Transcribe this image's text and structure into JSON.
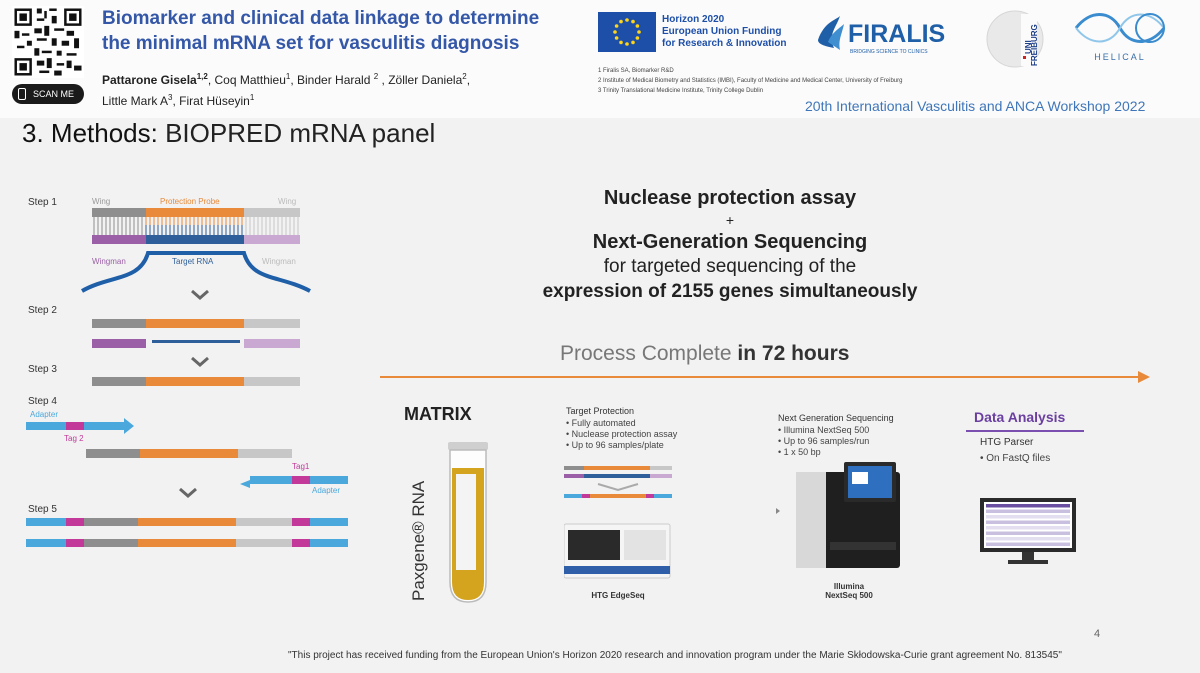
{
  "header": {
    "scan_me": "SCAN ME",
    "title_line1": "Biomarker and clinical data linkage to determine",
    "title_line2": "the minimal mRNA set for vasculitis diagnosis",
    "authors": [
      {
        "name": "Pattarone Gisela",
        "sup": "1,2",
        "bold": true,
        "sep": ", "
      },
      {
        "name": "Coq Matthieu",
        "sup": "1",
        "bold": false,
        "sep": ", "
      },
      {
        "name": "Binder Harald ",
        "sup": "2",
        "bold": false,
        "sep": " , "
      },
      {
        "name": "Zöller Daniela",
        "sup": "2",
        "bold": false,
        "sep": ","
      },
      {
        "name": "Little Mark A",
        "sup": "3",
        "bold": false,
        "sep": ", "
      },
      {
        "name": "Firat Hüseyin",
        "sup": "1",
        "bold": false,
        "sep": ""
      }
    ],
    "eu_line1": "Horizon 2020",
    "eu_line2": "European Union Funding",
    "eu_line3": "for Research & Innovation",
    "affil1": "1 Firalis SA, Biomarker R&D",
    "affil2": "2 Institute of Medical Biometry and Statistics (IMBI), Faculty of Medicine and Medical Center, University of Freiburg",
    "affil3": "3 Trinity Translational Medicine Institute, Trinity College Dublin",
    "firalis": "FIRALIS",
    "firalis_tag": "BRIDGING SCIENCE TO CLINICS",
    "uni": "UNI",
    "freiburg": "FREIBURG",
    "helical": "HELICAL",
    "workshop": "20th International Vasculitis and ANCA Workshop 2022"
  },
  "section": {
    "lead": "3. Methods:",
    "rest": "BIOPRED mRNA panel"
  },
  "steps": {
    "step1": "Step 1",
    "step2": "Step 2",
    "step3": "Step 3",
    "step4": "Step 4",
    "step5": "Step 5",
    "wing": "Wing",
    "protection_probe": "Protection Probe",
    "wingman": "Wingman",
    "target_rna": "Target RNA",
    "adapter": "Adapter",
    "tag1": "Tag1",
    "tag2": "Tag 2"
  },
  "headline": {
    "l1": "Nuclease protection assay",
    "plus": "+",
    "l3": "Next-Generation Sequencing",
    "l4": "for targeted sequencing of the",
    "l5": "expression of 2155 genes simultaneously"
  },
  "process": {
    "text": "Process Complete ",
    "bold": "in 72 hours"
  },
  "matrix": {
    "title": "MATRIX",
    "paxgene": "Paxgene® RNA"
  },
  "target_protection": {
    "title": "Target Protection",
    "items": [
      "Fully automated",
      "Nuclease protection assay",
      "Up to 96 samples/plate"
    ],
    "caption": "HTG EdgeSeq"
  },
  "ngs": {
    "title": "Next Generation Sequencing",
    "items": [
      "Illumina NextSeq 500",
      "Up to 96 samples/run",
      "1 x 50 bp"
    ],
    "caption1": "Illumina",
    "caption2": "NextSeq 500"
  },
  "data_analysis": {
    "title": "Data Analysis",
    "parser": "HTG Parser",
    "items": [
      "On FastQ files"
    ]
  },
  "footer": {
    "page": "4",
    "note": "\"This project has received funding from the European Union's Horizon 2020 research and innovation program under the Marie Skłodowska-Curie grant agreement No. 813545\""
  },
  "colors": {
    "title_blue": "#3457a8",
    "orange": "#e88a3a",
    "purple": "#9a5fa6",
    "teal": "#4aa8dc",
    "magenta": "#c2399a",
    "gray": "#9a9a9a"
  }
}
